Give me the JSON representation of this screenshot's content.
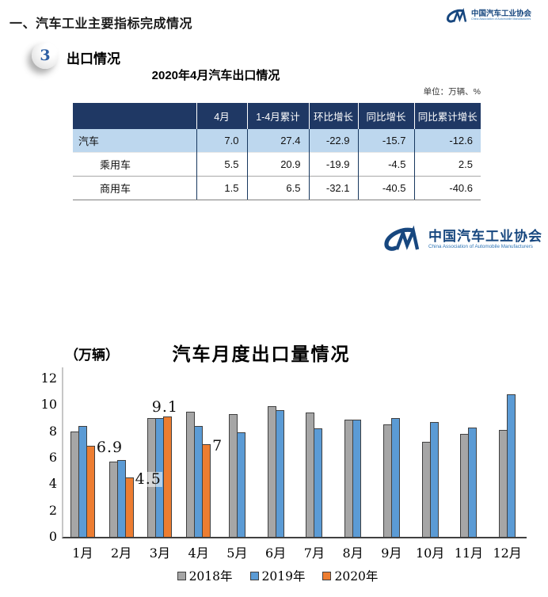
{
  "page": {
    "main_title": "一、汽车工业主要指标完成情况",
    "section_number": "3",
    "section_title": "出口情况"
  },
  "logo": {
    "name_cn": "中国汽车工业协会",
    "name_en": "China Association of Automobile Manufacturers",
    "color": "#17477F"
  },
  "table": {
    "title": "2020年4月汽车出口情况",
    "unit_note": "单位：万辆、%",
    "header_bg": "#1F3864",
    "highlight_bg": "#BDD7EE",
    "columns": [
      "",
      "4月",
      "1-4月累计",
      "环比增长",
      "同比增长",
      "同比累计增长"
    ],
    "rows": [
      {
        "label": "汽车",
        "indent": false,
        "highlight": true,
        "values": [
          "7.0",
          "27.4",
          "-22.9",
          "-15.7",
          "-12.6"
        ]
      },
      {
        "label": "乘用车",
        "indent": true,
        "highlight": false,
        "values": [
          "5.5",
          "20.9",
          "-19.9",
          "-4.5",
          "2.5"
        ]
      },
      {
        "label": "商用车",
        "indent": true,
        "highlight": false,
        "values": [
          "1.5",
          "6.5",
          "-32.1",
          "-40.5",
          "-40.6"
        ]
      }
    ]
  },
  "chart_data": {
    "type": "bar",
    "title": "汽车月度出口量情况",
    "ylabel": "（万辆）",
    "categories": [
      "1月",
      "2月",
      "3月",
      "4月",
      "5月",
      "6月",
      "7月",
      "8月",
      "9月",
      "10月",
      "11月",
      "12月"
    ],
    "series": [
      {
        "name": "2018年",
        "color": "#A6A6A6",
        "values": [
          8.0,
          5.7,
          9.0,
          9.5,
          9.3,
          9.9,
          9.4,
          8.9,
          8.5,
          7.2,
          7.8,
          8.1
        ]
      },
      {
        "name": "2019年",
        "color": "#5B9BD5",
        "values": [
          8.4,
          5.8,
          9.0,
          8.4,
          7.9,
          9.6,
          8.2,
          8.9,
          9.0,
          8.7,
          8.3,
          10.8
        ]
      },
      {
        "name": "2020年",
        "color": "#ED7D31",
        "values": [
          6.9,
          4.5,
          9.1,
          7.0,
          null,
          null,
          null,
          null,
          null,
          null,
          null,
          null
        ],
        "data_labels": [
          {
            "index": 0,
            "text": "6.9",
            "placement": "right"
          },
          {
            "index": 1,
            "text": "4.5",
            "placement": "right"
          },
          {
            "index": 2,
            "text": "9.1",
            "placement": "above"
          },
          {
            "index": 3,
            "text": "7",
            "placement": "right"
          }
        ]
      }
    ],
    "ylim": [
      0,
      12
    ],
    "ytick_step": 2,
    "grid": false,
    "legend_position": "bottom"
  }
}
